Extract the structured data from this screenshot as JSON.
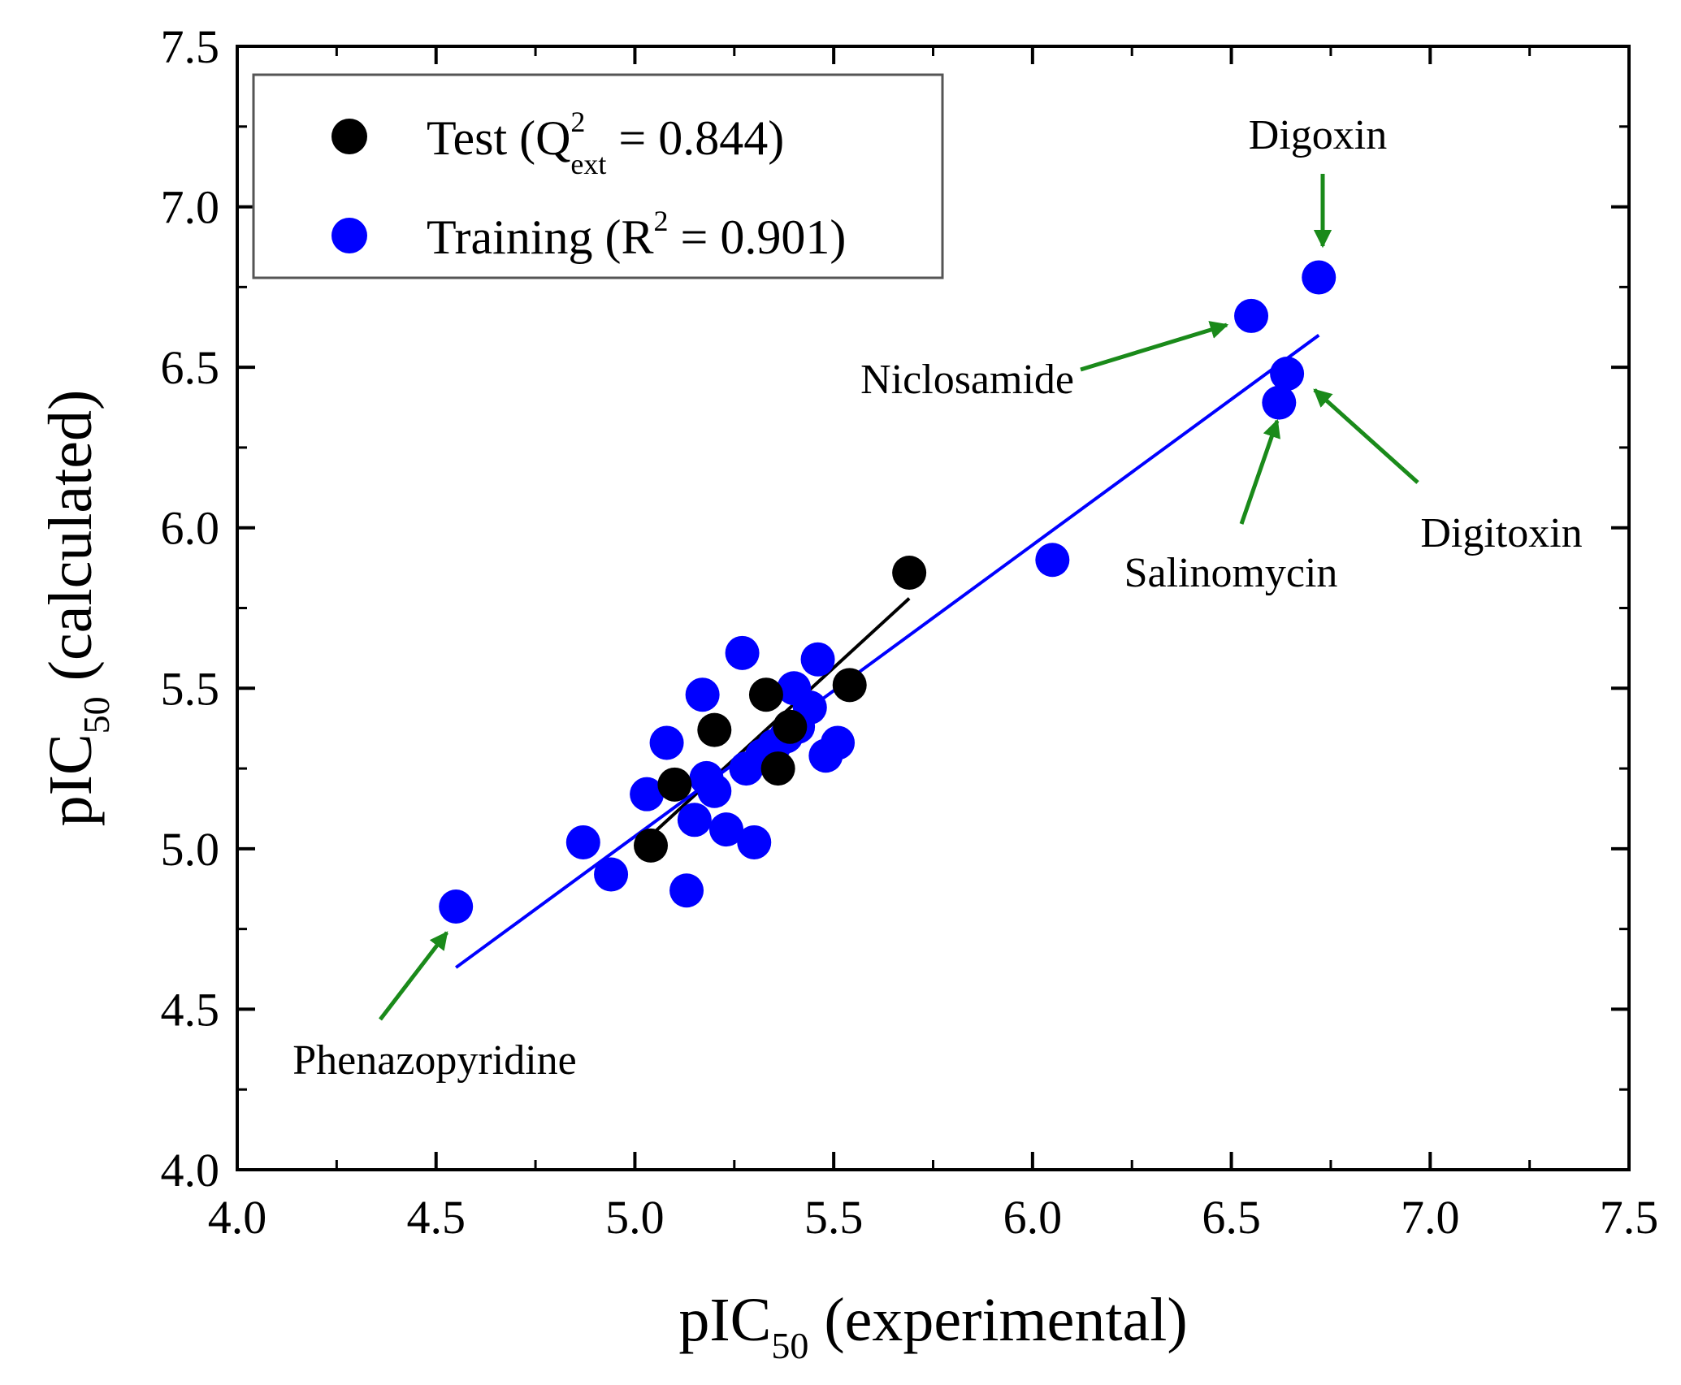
{
  "chart_data": {
    "type": "scatter",
    "xlabel": {
      "main": "pIC",
      "sub": "50",
      "rest": " (experimental)"
    },
    "ylabel": {
      "main": "pIC",
      "sub": "50",
      "rest": " (calculated)"
    },
    "xlim": [
      4.0,
      7.5
    ],
    "ylim": [
      4.0,
      7.5
    ],
    "x_ticks": [
      "4.0",
      "4.5",
      "5.0",
      "5.5",
      "6.0",
      "6.5",
      "7.0",
      "7.5"
    ],
    "y_ticks": [
      "4.0",
      "4.5",
      "5.0",
      "5.5",
      "6.0",
      "6.5",
      "7.0",
      "7.5"
    ],
    "grid": false,
    "legend_position": "top-left",
    "series": [
      {
        "name": "Test",
        "legend": {
          "pre": "Test (Q",
          "sup": "2",
          "sub": "ext",
          "post": " = 0.844)"
        },
        "color": "#000000",
        "points": [
          [
            5.04,
            5.01
          ],
          [
            5.1,
            5.2
          ],
          [
            5.2,
            5.37
          ],
          [
            5.33,
            5.48
          ],
          [
            5.36,
            5.25
          ],
          [
            5.54,
            5.51
          ],
          [
            5.69,
            5.86
          ],
          [
            5.39,
            5.38
          ]
        ],
        "fit_line": [
          [
            5.03,
            5.03
          ],
          [
            5.69,
            5.78
          ]
        ]
      },
      {
        "name": "Training",
        "legend": {
          "pre": "Training (R",
          "sup": "2",
          "post": " = 0.901)"
        },
        "color": "#0000ff",
        "points": [
          [
            4.55,
            4.82
          ],
          [
            4.87,
            5.02
          ],
          [
            4.94,
            4.92
          ],
          [
            5.03,
            5.17
          ],
          [
            5.08,
            5.33
          ],
          [
            5.13,
            4.87
          ],
          [
            5.15,
            5.09
          ],
          [
            5.17,
            5.48
          ],
          [
            5.18,
            5.22
          ],
          [
            5.2,
            5.18
          ],
          [
            5.23,
            5.06
          ],
          [
            5.27,
            5.61
          ],
          [
            5.28,
            5.25
          ],
          [
            5.3,
            5.02
          ],
          [
            5.32,
            5.29
          ],
          [
            5.35,
            5.32
          ],
          [
            5.38,
            5.35
          ],
          [
            5.4,
            5.5
          ],
          [
            5.41,
            5.38
          ],
          [
            5.44,
            5.44
          ],
          [
            5.46,
            5.59
          ],
          [
            5.48,
            5.29
          ],
          [
            5.51,
            5.33
          ],
          [
            6.05,
            5.9
          ],
          [
            6.55,
            6.66
          ],
          [
            6.62,
            6.39
          ],
          [
            6.64,
            6.48
          ],
          [
            6.72,
            6.78
          ]
        ],
        "fit_line": [
          [
            4.55,
            4.63
          ],
          [
            6.72,
            6.6
          ]
        ]
      }
    ],
    "annotations": [
      {
        "text": "Digoxin",
        "x": 6.72,
        "y": 6.78
      },
      {
        "text": "Niclosamide",
        "x": 6.55,
        "y": 6.66
      },
      {
        "text": "Salinomycin",
        "x": 6.62,
        "y": 6.39
      },
      {
        "text": "Digitoxin",
        "x": 6.64,
        "y": 6.48
      },
      {
        "text": "Phenazopyridine",
        "x": 4.55,
        "y": 4.82
      }
    ],
    "arrow_color": "#1a8a1a"
  }
}
